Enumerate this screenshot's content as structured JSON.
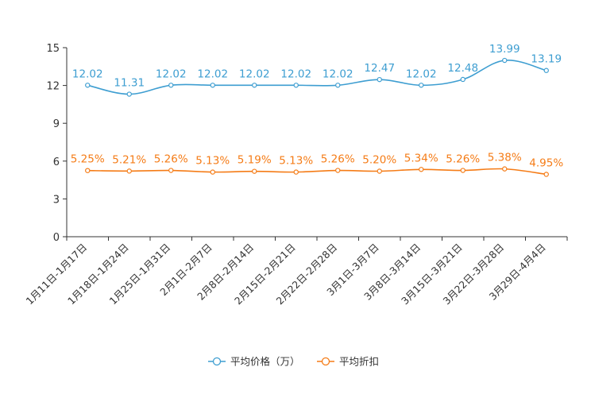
{
  "chart_data": {
    "type": "line",
    "title": "",
    "xlabel": "",
    "ylabel": "",
    "ylim": [
      0,
      15
    ],
    "yticks": [
      0,
      3,
      6,
      9,
      12,
      15
    ],
    "grid": false,
    "legend_position": "bottom-center",
    "categories": [
      "1月11日-1月17日",
      "1月18日-1月24日",
      "1月25日-1月31日",
      "2月1日-2月7日",
      "2月8日-2月14日",
      "2月15日-2月21日",
      "2月22日-2月28日",
      "3月1日-3月7日",
      "3月8日-3月14日",
      "3月15日-3月21日",
      "3月22日-3月28日",
      "3月29日-4月4日"
    ],
    "series": [
      {
        "name": "平均价格（万）",
        "color": "#3e9ed1",
        "values": [
          12.02,
          11.31,
          12.02,
          12.02,
          12.02,
          12.02,
          12.02,
          12.47,
          12.02,
          12.48,
          13.99,
          13.19
        ],
        "labels": [
          "12.02",
          "11.31",
          "12.02",
          "12.02",
          "12.02",
          "12.02",
          "12.02",
          "12.47",
          "12.02",
          "12.48",
          "13.99",
          "13.19"
        ]
      },
      {
        "name": "平均折扣",
        "color": "#f57c17",
        "values": [
          5.25,
          5.21,
          5.26,
          5.13,
          5.19,
          5.13,
          5.26,
          5.2,
          5.34,
          5.26,
          5.38,
          4.95
        ],
        "labels": [
          "5.25%",
          "5.21%",
          "5.26%",
          "5.13%",
          "5.19%",
          "5.13%",
          "5.26%",
          "5.20%",
          "5.34%",
          "5.26%",
          "5.38%",
          "4.95%"
        ]
      }
    ]
  }
}
